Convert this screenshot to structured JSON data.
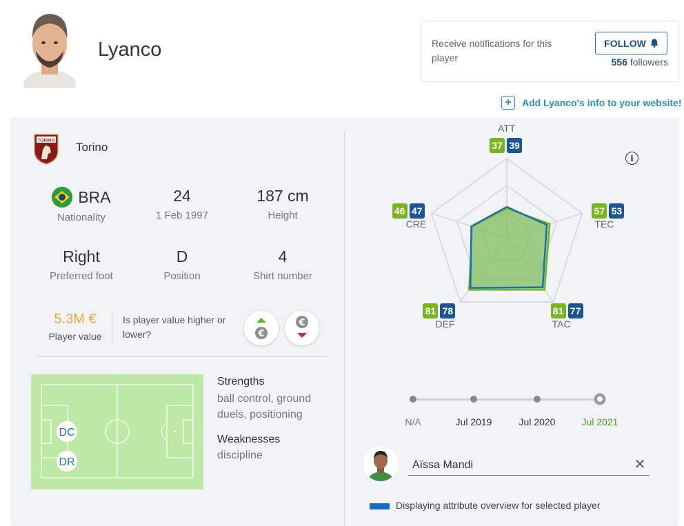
{
  "player": {
    "name": "Lyanco"
  },
  "notifications": {
    "text": "Receive notifications for this player",
    "follow_label": "FOLLOW",
    "followers_count": "556",
    "followers_label": "followers"
  },
  "add_info_link": "Add Lyanco's info to your website!",
  "club": {
    "name": "Torino",
    "logo_text": "TORINO"
  },
  "stats": [
    {
      "value": "BRA",
      "label": "Nationality",
      "icon": "brazil-flag-icon"
    },
    {
      "value": "24",
      "label": "1 Feb 1997"
    },
    {
      "value": "187 cm",
      "label": "Height"
    },
    {
      "value": "Right",
      "label": "Preferred foot"
    },
    {
      "value": "D",
      "label": "Position"
    },
    {
      "value": "4",
      "label": "Shirt number"
    }
  ],
  "player_value": {
    "value": "5.3M €",
    "label": "Player value",
    "question": "Is player value higher or lower?",
    "up_icon": "value-up-icon",
    "down_icon": "value-down-icon"
  },
  "positions": [
    "DC",
    "DR"
  ],
  "strengths": {
    "title": "Strengths",
    "text": "ball control, ground duels, positioning"
  },
  "weaknesses": {
    "title": "Weaknesses",
    "text": "discipline"
  },
  "attributes": {
    "scale_max": 100,
    "axes": [
      {
        "key": "ATT",
        "player": 37,
        "compare": 39
      },
      {
        "key": "TEC",
        "player": 57,
        "compare": 53
      },
      {
        "key": "TAC",
        "player": 81,
        "compare": 77
      },
      {
        "key": "DEF",
        "player": 81,
        "compare": 78
      },
      {
        "key": "CRE",
        "player": 46,
        "compare": 47
      }
    ],
    "colors": {
      "player": "#7ab51d",
      "compare": "#1a5596",
      "fill": "#7dbf5a"
    }
  },
  "timeline": {
    "points": [
      "N/A",
      "Jul 2019",
      "Jul 2020",
      "Jul 2021"
    ],
    "selected": "Jul 2021"
  },
  "compare": {
    "player_name": "Aïssa Mandi",
    "clear_icon": "close-icon",
    "legend": "Displaying attribute overview for selected player"
  }
}
